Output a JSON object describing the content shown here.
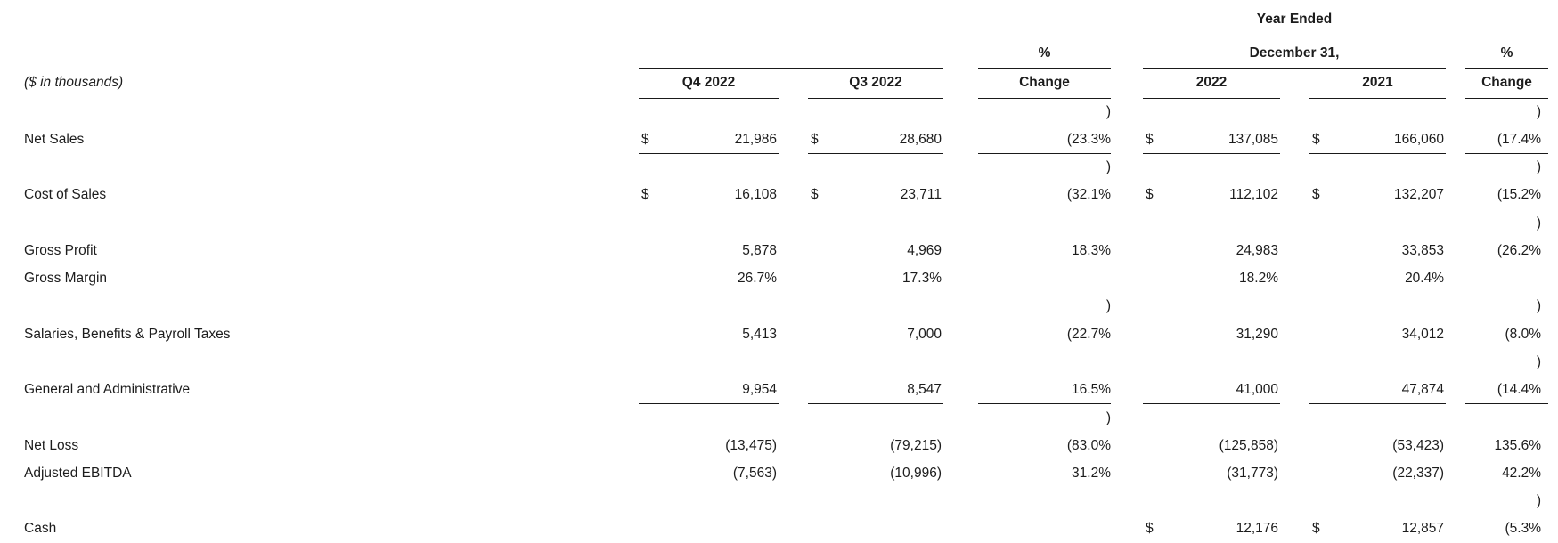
{
  "document": {
    "units_note": "($ in thousands)"
  },
  "header": {
    "year_ended_line1": "Year Ended",
    "year_ended_line2": "December 31,",
    "pct": "%",
    "change": "Change",
    "col_q4": "Q4 2022",
    "col_q3": "Q3 2022",
    "col_fy2022": "2022",
    "col_fy2021": "2021"
  },
  "table": {
    "columns": [
      "Q4 2022",
      "Q3 2022",
      "% Change",
      "2022",
      "2021",
      "% Change"
    ],
    "rows": [
      {
        "type": "wrap",
        "chg1": ")",
        "chg2": ")"
      },
      {
        "type": "data",
        "label": "Net Sales",
        "q4d": "$",
        "q4": "21,986",
        "q3d": "$",
        "q3": "28,680",
        "chg1": "(23.3%",
        "d22": "$",
        "v22": "137,085",
        "d21": "$",
        "v21": "166,060",
        "chg2": "(17.4%",
        "underline": true
      },
      {
        "type": "wrap",
        "chg1": ")",
        "chg2": ")"
      },
      {
        "type": "data",
        "label": "Cost of Sales",
        "q4d": "$",
        "q4": "16,108",
        "q3d": "$",
        "q3": "23,711",
        "chg1": "(32.1%",
        "d22": "$",
        "v22": "112,102",
        "d21": "$",
        "v21": "132,207",
        "chg2": "(15.2%"
      },
      {
        "type": "wrap",
        "chg1": "",
        "chg2": ")"
      },
      {
        "type": "data",
        "label": "Gross Profit",
        "q4": "5,878",
        "q3": "4,969",
        "chg1": "18.3%",
        "v22": "24,983",
        "v21": "33,853",
        "chg2": "(26.2%"
      },
      {
        "type": "data",
        "label": "Gross Margin",
        "q4": "26.7%",
        "q3": "17.3%",
        "chg1": "",
        "v22": "18.2%",
        "v21": "20.4%",
        "chg2": ""
      },
      {
        "type": "wrap",
        "chg1": ")",
        "chg2": ")"
      },
      {
        "type": "data",
        "label": "Salaries, Benefits & Payroll Taxes",
        "q4": "5,413",
        "q3": "7,000",
        "chg1": "(22.7%",
        "v22": "31,290",
        "v21": "34,012",
        "chg2": "(8.0%"
      },
      {
        "type": "wrap",
        "chg1": "",
        "chg2": ")"
      },
      {
        "type": "data",
        "label": "General and Administrative",
        "q4": "9,954",
        "q3": "8,547",
        "chg1": "16.5%",
        "v22": "41,000",
        "v21": "47,874",
        "chg2": "(14.4%",
        "underline": true
      },
      {
        "type": "wrap",
        "chg1": ")",
        "chg2": ""
      },
      {
        "type": "data",
        "label": "Net Loss",
        "q4": "(13,475)",
        "q3": "(79,215)",
        "chg1": "(83.0%",
        "v22": "(125,858)",
        "v21": "(53,423)",
        "chg2": "135.6%"
      },
      {
        "type": "data",
        "label": "Adjusted EBITDA",
        "q4": "(7,563)",
        "q3": "(10,996)",
        "chg1": "31.2%",
        "v22": "(31,773)",
        "v21": "(22,337)",
        "chg2": "42.2%"
      },
      {
        "type": "wrap",
        "chg1": "",
        "chg2": ")"
      },
      {
        "type": "data",
        "label": "Cash",
        "q4": "",
        "q3": "",
        "chg1": "",
        "d22": "$",
        "v22": "12,176",
        "d21": "$",
        "v21": "12,857",
        "chg2": "(5.3%"
      }
    ]
  }
}
